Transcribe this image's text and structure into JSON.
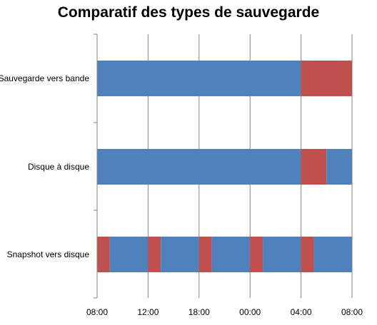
{
  "chart_data": {
    "type": "bar",
    "orientation": "horizontal",
    "stacked": true,
    "title": "Comparatif des types de sauvegarde",
    "categories": [
      "Sauvegarde vers bande",
      "Disque à disque",
      "Snapshot vers disque"
    ],
    "x_ticks": [
      "08:00",
      "12:00",
      "18:00",
      "00:00",
      "04:00",
      "08:00"
    ],
    "xlim": [
      0,
      5
    ],
    "grid": true,
    "colors": {
      "blue": "#4F81BD",
      "red": "#C0504D"
    },
    "bars": [
      {
        "category": "Sauvegarde vers bande",
        "segments": [
          {
            "start": 0,
            "end": 4.0,
            "color": "blue"
          },
          {
            "start": 4.0,
            "end": 5.0,
            "color": "red"
          }
        ]
      },
      {
        "category": "Disque à disque",
        "segments": [
          {
            "start": 0,
            "end": 4.0,
            "color": "blue"
          },
          {
            "start": 4.0,
            "end": 4.5,
            "color": "red"
          },
          {
            "start": 4.5,
            "end": 5.0,
            "color": "blue"
          }
        ]
      },
      {
        "category": "Snapshot vers disque",
        "segments": [
          {
            "start": 0,
            "end": 0.25,
            "color": "red"
          },
          {
            "start": 0.25,
            "end": 1.0,
            "color": "blue"
          },
          {
            "start": 1.0,
            "end": 1.25,
            "color": "red"
          },
          {
            "start": 1.25,
            "end": 2.0,
            "color": "blue"
          },
          {
            "start": 2.0,
            "end": 2.25,
            "color": "red"
          },
          {
            "start": 2.25,
            "end": 3.0,
            "color": "blue"
          },
          {
            "start": 3.0,
            "end": 3.25,
            "color": "red"
          },
          {
            "start": 3.25,
            "end": 4.0,
            "color": "blue"
          },
          {
            "start": 4.0,
            "end": 4.25,
            "color": "red"
          },
          {
            "start": 4.25,
            "end": 5.0,
            "color": "blue"
          }
        ]
      }
    ]
  }
}
